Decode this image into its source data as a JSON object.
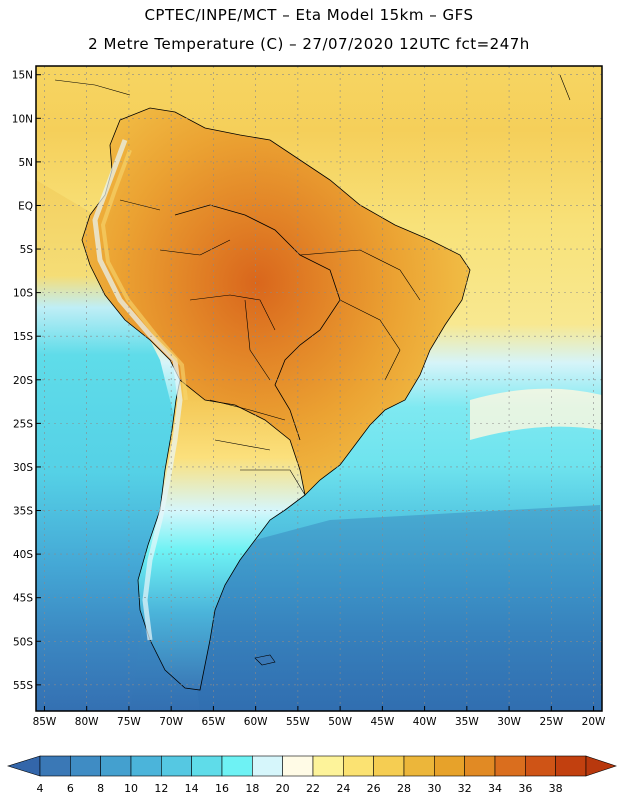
{
  "header": {
    "line1": "CPTEC/INPE/MCT –  Eta Model 15km – GFS",
    "line2": "2 Metre Temperature (C) – 27/07/2020 12UTC fct=247h"
  },
  "map": {
    "lon_range": [
      -86,
      -19
    ],
    "lat_range": [
      -58,
      16
    ],
    "lat_ticks": [
      "15N",
      "10N",
      "5N",
      "EQ",
      "5S",
      "10S",
      "15S",
      "20S",
      "25S",
      "30S",
      "35S",
      "40S",
      "45S",
      "50S",
      "55S"
    ],
    "lat_values": [
      15,
      10,
      5,
      0,
      -5,
      -10,
      -15,
      -20,
      -25,
      -30,
      -35,
      -40,
      -45,
      -50,
      -55
    ],
    "lon_ticks": [
      "85W",
      "80W",
      "75W",
      "70W",
      "65W",
      "60W",
      "55W",
      "50W",
      "45W",
      "40W",
      "35W",
      "30W",
      "25W",
      "20W"
    ],
    "lon_values": [
      -85,
      -80,
      -75,
      -70,
      -65,
      -60,
      -55,
      -50,
      -45,
      -40,
      -35,
      -30,
      -25,
      -20
    ]
  },
  "colorbar": {
    "labels": [
      "4",
      "6",
      "8",
      "10",
      "12",
      "14",
      "16",
      "18",
      "20",
      "22",
      "24",
      "26",
      "28",
      "30",
      "32",
      "34",
      "36",
      "38"
    ],
    "colors": [
      "#3a78b6",
      "#3f8cc4",
      "#44a0cf",
      "#4bb4da",
      "#55c8e2",
      "#5fdce9",
      "#6ef2f4",
      "#d6f6fb",
      "#fffbe6",
      "#fdf39a",
      "#fbe272",
      "#f5cd52",
      "#ecb63a",
      "#e7a22a",
      "#e18a24",
      "#da6e1e",
      "#cf5416",
      "#c2400f"
    ]
  }
}
